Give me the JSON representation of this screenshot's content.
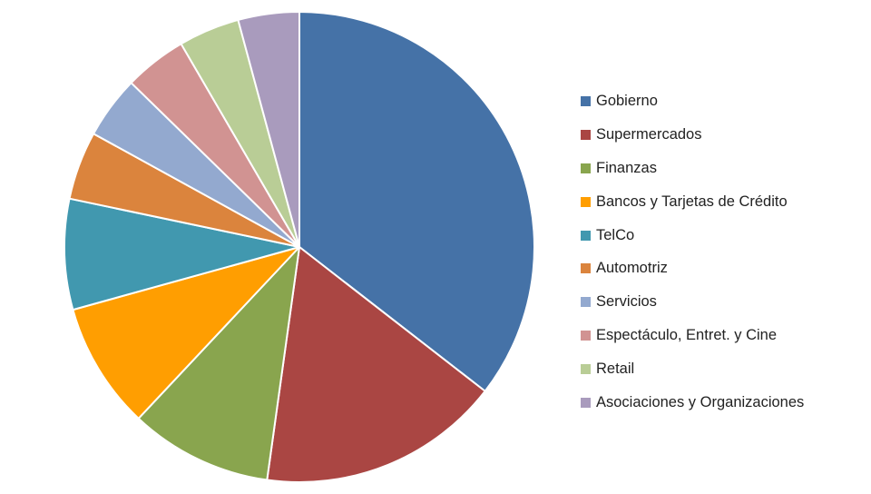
{
  "chart_data": {
    "type": "pie",
    "title": "",
    "legend_position": "right",
    "start_angle": "12 o'clock",
    "direction": "clockwise",
    "categories": [
      "Gobierno",
      "Supermercados",
      "Finanzas",
      "Bancos y Tarjetas de Crédito",
      "TelCo",
      "Automotriz",
      "Servicios",
      "Espectáculo, Entret. y Cine",
      "Retail",
      "Asociaciones y Organizaciones"
    ],
    "values": [
      35.5,
      16.7,
      9.8,
      8.7,
      7.6,
      4.7,
      4.3,
      4.3,
      4.2,
      4.2
    ],
    "colors": [
      "#4572A7",
      "#AA4643",
      "#89A54E",
      "#FF9E01",
      "#4198AF",
      "#DB843D",
      "#93A9CF",
      "#D19392",
      "#B9CD96",
      "#A99BBD"
    ]
  }
}
